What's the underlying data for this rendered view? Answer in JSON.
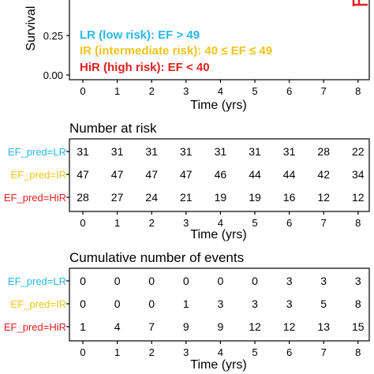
{
  "chart_data": [
    {
      "type": "line",
      "ylabel": "Survival",
      "xlabel": "Time (yrs)",
      "x_ticks": [
        "0",
        "1",
        "2",
        "3",
        "4",
        "5",
        "6",
        "7",
        "8"
      ],
      "y_ticks_visible": [
        "0.25",
        "0.00"
      ],
      "ylim": [
        0,
        0.4
      ],
      "legend": [
        {
          "label": "LR (low risk): EF > 49",
          "color": "#29b6e8"
        },
        {
          "label": "IR (intermediate risk): 40 ≤ EF ≤ 49",
          "color": "#f0c419"
        },
        {
          "label": "HiR (high risk): EF < 40",
          "color": "#e02020"
        }
      ],
      "legend_position": "bottom-left"
    },
    {
      "type": "table",
      "title": "Number at risk",
      "xlabel": "Time (yrs)",
      "x_ticks": [
        "0",
        "1",
        "2",
        "3",
        "4",
        "5",
        "6",
        "7",
        "8"
      ],
      "rows": [
        {
          "label": "EF_pred=LR",
          "color": "#29b6e8",
          "values": [
            "31",
            "31",
            "31",
            "31",
            "31",
            "31",
            "31",
            "28",
            "22"
          ]
        },
        {
          "label": "EF_pred=IR",
          "color": "#f0c419",
          "values": [
            "47",
            "47",
            "47",
            "47",
            "46",
            "44",
            "44",
            "42",
            "34"
          ]
        },
        {
          "label": "EF_pred=HiR",
          "color": "#e02020",
          "values": [
            "28",
            "27",
            "24",
            "21",
            "19",
            "19",
            "16",
            "12",
            "12"
          ]
        }
      ]
    },
    {
      "type": "table",
      "title": "Cumulative number of events",
      "xlabel": "Time (yrs)",
      "x_ticks": [
        "0",
        "1",
        "2",
        "3",
        "4",
        "5",
        "6",
        "7",
        "8"
      ],
      "rows": [
        {
          "label": "EF_pred=LR",
          "color": "#29b6e8",
          "values": [
            "0",
            "0",
            "0",
            "0",
            "0",
            "0",
            "3",
            "3",
            "3"
          ]
        },
        {
          "label": "EF_pred=IR",
          "color": "#f0c419",
          "values": [
            "0",
            "0",
            "0",
            "1",
            "3",
            "3",
            "3",
            "5",
            "8"
          ]
        },
        {
          "label": "EF_pred=HiR",
          "color": "#e02020",
          "values": [
            "1",
            "4",
            "7",
            "9",
            "9",
            "12",
            "12",
            "13",
            "15"
          ]
        }
      ]
    }
  ]
}
